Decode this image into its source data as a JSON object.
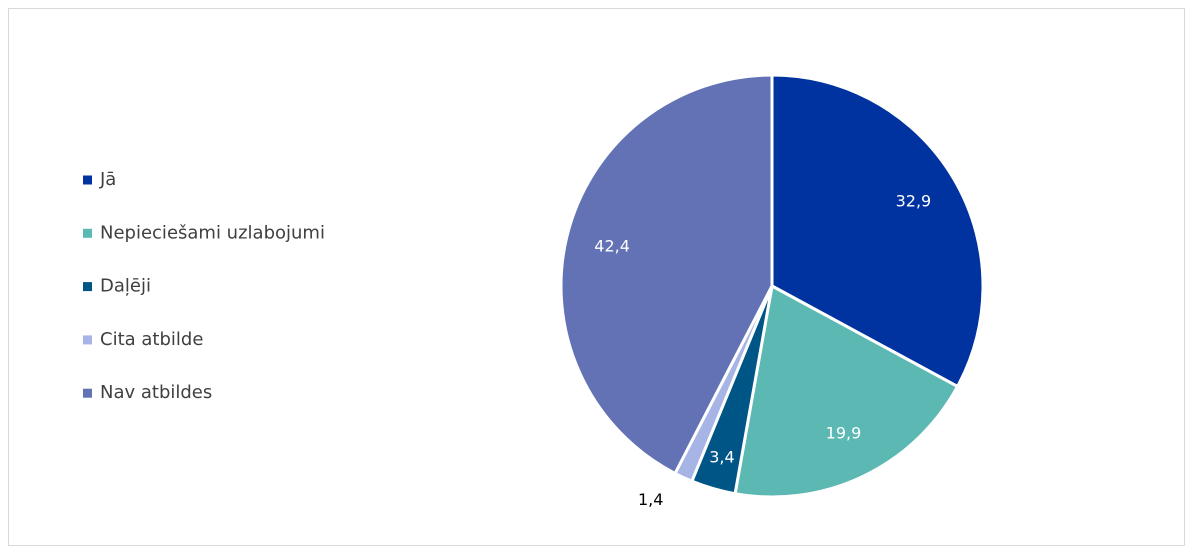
{
  "chart_data": {
    "type": "pie",
    "categories": [
      "Jā",
      "Nepieciešami uzlabojumi",
      "Daļēji",
      "Cita atbilde",
      "Nav atbildes"
    ],
    "values": [
      32.9,
      19.9,
      3.4,
      1.4,
      42.4
    ],
    "value_labels": [
      "32,9",
      "19,9",
      "3,4",
      "1,4",
      "42,4"
    ],
    "colors": [
      "#0033a0",
      "#5cb8b2",
      "#005587",
      "#a6b4e6",
      "#6272b4"
    ],
    "legend": "left"
  }
}
